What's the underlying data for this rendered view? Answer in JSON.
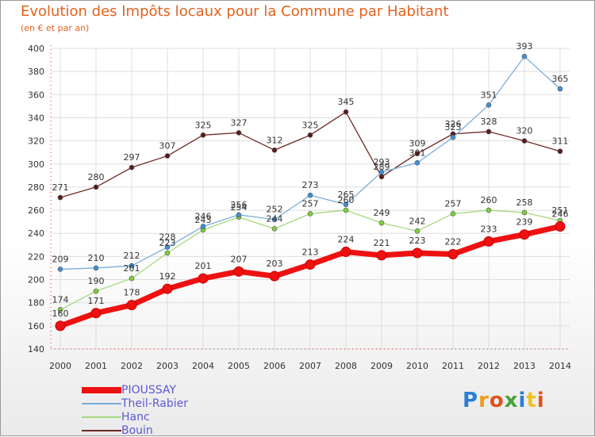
{
  "title": "Evolution des Impôts locaux pour la Commune par Habitant",
  "subtitle": "(en € et par an)",
  "logo": [
    "P",
    "r",
    "o",
    "x",
    "i",
    "t",
    "i"
  ],
  "chart_data": {
    "type": "line",
    "title": "Evolution des Impôts locaux pour la Commune par Habitant",
    "subtitle": "(en € et par an)",
    "xlabel": "",
    "ylabel": "",
    "x": [
      2000,
      2001,
      2002,
      2003,
      2004,
      2005,
      2006,
      2007,
      2008,
      2009,
      2010,
      2011,
      2012,
      2013,
      2014
    ],
    "ylim": [
      140,
      400
    ],
    "yticks": [
      140,
      160,
      180,
      200,
      220,
      240,
      260,
      280,
      300,
      320,
      340,
      360,
      380,
      400
    ],
    "grid": true,
    "legend_position": "bottom-left",
    "series": [
      {
        "name": "Bouin",
        "color": "#6b2a22",
        "marker": "#5a1a1a",
        "values": [
          271,
          280,
          297,
          307,
          325,
          327,
          312,
          325,
          345,
          289,
          309,
          326,
          328,
          320,
          311
        ]
      },
      {
        "name": "Hanc",
        "color": "#a6d97e",
        "marker": "#7fcf3a",
        "values": [
          174,
          190,
          201,
          223,
          243,
          254,
          244,
          257,
          260,
          249,
          242,
          257,
          260,
          258,
          251
        ]
      },
      {
        "name": "Theil-Rabier",
        "color": "#7aaedc",
        "marker": "#3f8fd8",
        "values": [
          209,
          210,
          212,
          228,
          246,
          256,
          252,
          273,
          265,
          293,
          301,
          323,
          351,
          393,
          365
        ]
      },
      {
        "name": "PIOUSSAY",
        "color": "#ee1111",
        "marker": "#ee1111",
        "values": [
          160,
          171,
          178,
          192,
          201,
          207,
          203,
          213,
          224,
          221,
          223,
          222,
          233,
          239,
          246
        ]
      }
    ]
  }
}
